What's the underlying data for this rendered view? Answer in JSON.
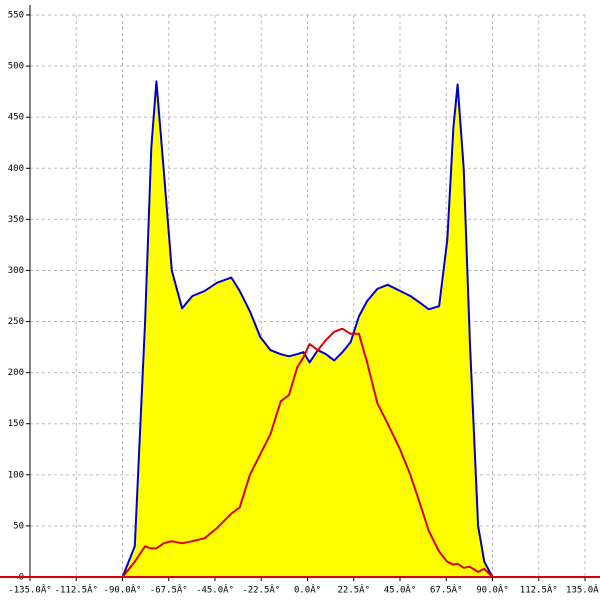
{
  "chart_data": {
    "type": "area",
    "x": [
      -90,
      -84,
      -79,
      -76,
      -73.5,
      -70,
      -66,
      -61,
      -56,
      -50,
      -44,
      -37,
      -33,
      -28,
      -23,
      -18,
      -13,
      -9,
      -5,
      -2,
      1,
      5,
      9,
      13,
      17,
      21,
      25,
      29,
      34,
      39,
      45,
      50,
      55,
      59,
      64,
      68,
      71,
      73,
      76,
      79,
      83,
      86,
      90
    ],
    "series": [
      {
        "color": "#0000cc",
        "fill": "#ffff00",
        "values": [
          0,
          30,
          250,
          420,
          485,
          400,
          300,
          263,
          275,
          280,
          288,
          293,
          280,
          260,
          235,
          222,
          218,
          216,
          218,
          220,
          210,
          222,
          218,
          212,
          220,
          230,
          255,
          270,
          282,
          286,
          280,
          275,
          268,
          262,
          265,
          330,
          440,
          482,
          400,
          230,
          50,
          15,
          0
        ]
      },
      {
        "color": "#dd0000",
        "values": [
          0,
          15,
          30,
          28,
          28,
          33,
          35,
          33,
          35,
          38,
          48,
          62,
          68,
          100,
          120,
          140,
          172,
          178,
          205,
          215,
          228,
          222,
          232,
          240,
          243,
          238,
          238,
          210,
          170,
          150,
          125,
          100,
          70,
          45,
          25,
          15,
          12,
          13,
          9,
          10,
          5,
          8,
          0
        ]
      }
    ],
    "xlim": [
      -135,
      135
    ],
    "xticks": [
      {
        "value": -135,
        "label": "-135.0Â°"
      },
      {
        "value": -112.5,
        "label": "-112.5Â°"
      },
      {
        "value": -90,
        "label": "-90.0Â°"
      },
      {
        "value": -67.5,
        "label": "-67.5Â°"
      },
      {
        "value": -45,
        "label": "-45.0Â°"
      },
      {
        "value": -22.5,
        "label": "-22.5Â°"
      },
      {
        "value": 0,
        "label": "0.0Â°"
      },
      {
        "value": 22.5,
        "label": "22.5Â°"
      },
      {
        "value": 45,
        "label": "45.0Â°"
      },
      {
        "value": 67.5,
        "label": "67.5Â°"
      },
      {
        "value": 90,
        "label": "90.0Â°"
      },
      {
        "value": 112.5,
        "label": "112.5Â°"
      },
      {
        "value": 135,
        "label": "135.0Â°"
      }
    ],
    "ylim": [
      0,
      550
    ],
    "yticks": [
      0,
      50,
      100,
      150,
      200,
      250,
      300,
      350,
      400,
      450,
      500,
      550
    ],
    "grid": true
  }
}
